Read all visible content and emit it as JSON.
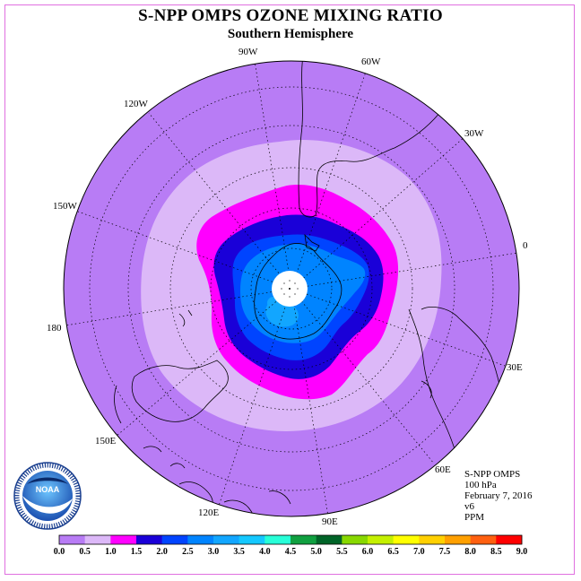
{
  "title": "S-NPP OMPS OZONE MIXING RATIO",
  "subtitle": "Southern Hemisphere",
  "longitude_labels": [
    "90W",
    "60W",
    "120W",
    "30W",
    "150W",
    "0",
    "180",
    "30E",
    "150E",
    "60E",
    "120E",
    "90E"
  ],
  "info": {
    "instrument": "S-NPP OMPS",
    "level": "100 hPa",
    "date": "February 7, 2016",
    "version": "v6",
    "units": "PPM"
  },
  "colorbar": {
    "ticks": [
      "0.0",
      "0.5",
      "1.0",
      "1.5",
      "2.0",
      "2.5",
      "3.0",
      "3.5",
      "4.0",
      "4.5",
      "5.0",
      "5.5",
      "6.0",
      "6.5",
      "7.0",
      "7.5",
      "8.0",
      "8.5",
      "9.0"
    ],
    "colors": [
      "#b87cf5",
      "#dcb8f8",
      "#ff00ff",
      "#1a00d8",
      "#0044ff",
      "#0084ff",
      "#12a6ff",
      "#14c8ff",
      "#28ffd8",
      "#10a040",
      "#006428",
      "#88d800",
      "#c4f000",
      "#ffff00",
      "#ffd000",
      "#ffa000",
      "#ff6010",
      "#ff0000",
      "#8a5020"
    ]
  },
  "logo": {
    "name": "NOAA"
  },
  "colors": {
    "background_ppm": "#b87cf5",
    "band_0_5": "#dcb8f8",
    "band_1_0": "#ff00ff",
    "band_1_5": "#1a00d8",
    "band_2_0": "#0044ff",
    "band_2_5": "#0084ff",
    "band_3_0": "#12a6ff"
  }
}
